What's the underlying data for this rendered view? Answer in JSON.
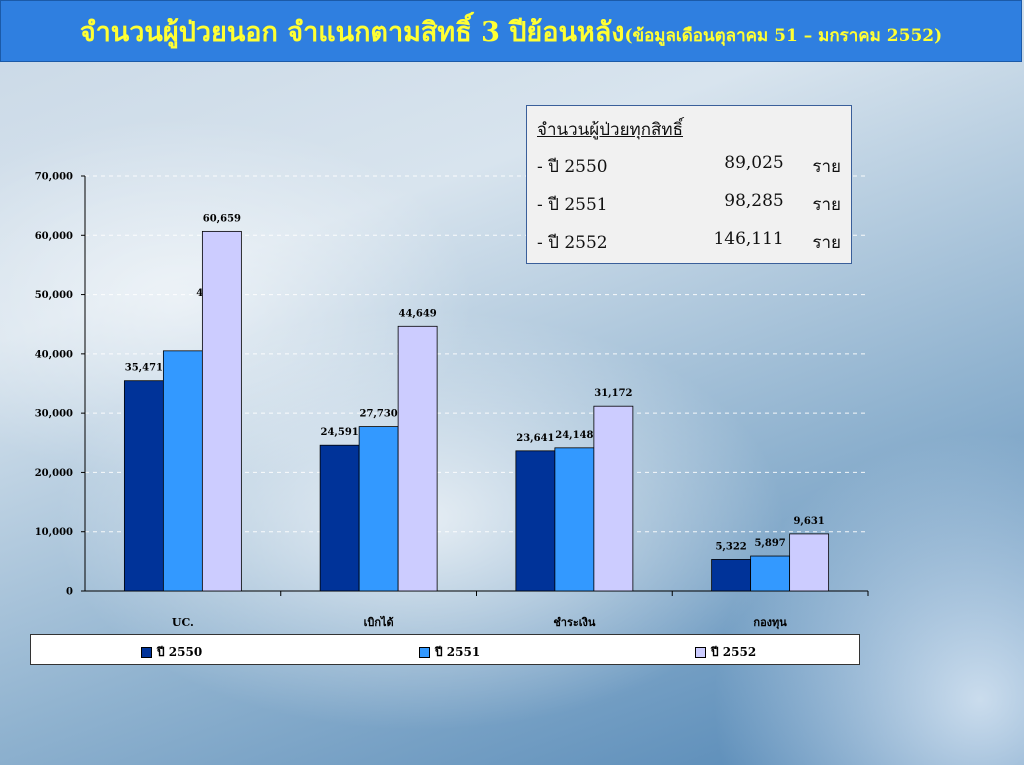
{
  "title": {
    "main": "จำนวนผู้ป่วยนอก จำแนกตามสิทธิ์ 3 ปีย้อนหลัง",
    "sub": "(ข้อมูลเดือนตุลาคม 51 – มกราคม 2552)"
  },
  "info_box": {
    "heading": "จำนวนผู้ป่วยทุกสิทธิ์",
    "rows": [
      {
        "label": "- ปี 2550",
        "value": "89,025",
        "unit": "ราย"
      },
      {
        "label": "- ปี 2551",
        "value": "98,285",
        "unit": "ราย"
      },
      {
        "label": "- ปี 2552",
        "value": "146,111",
        "unit": "ราย"
      }
    ]
  },
  "colors": {
    "title_bg": "#2f7fe0",
    "title_text": "#ffff33",
    "series": [
      "#003399",
      "#3399ff",
      "#ccccff"
    ]
  },
  "chart_data": {
    "type": "bar",
    "categories": [
      "UC.",
      "เบิกได้",
      "ชำระเงิน",
      "กองทุน"
    ],
    "series": [
      {
        "name": "ปี 2550",
        "values": [
          35471,
          24591,
          23641,
          5322
        ]
      },
      {
        "name": "ปี 2551",
        "values": [
          40510,
          27730,
          24148,
          5897
        ]
      },
      {
        "name": "ปี 2552",
        "values": [
          60659,
          44649,
          31172,
          9631
        ]
      }
    ],
    "data_labels": [
      [
        "35,471",
        "24,591",
        "23,641",
        "5,322"
      ],
      [
        "40,510",
        "27,730",
        "24,148",
        "5,897"
      ],
      [
        "60,659",
        "44,649",
        "31,172",
        "9,631"
      ]
    ],
    "yticks": [
      "0",
      "10,000",
      "20,000",
      "30,000",
      "40,000",
      "50,000",
      "60,000",
      "70,000"
    ],
    "ylim": [
      0,
      70000
    ],
    "grid": true,
    "legend_position": "bottom"
  }
}
